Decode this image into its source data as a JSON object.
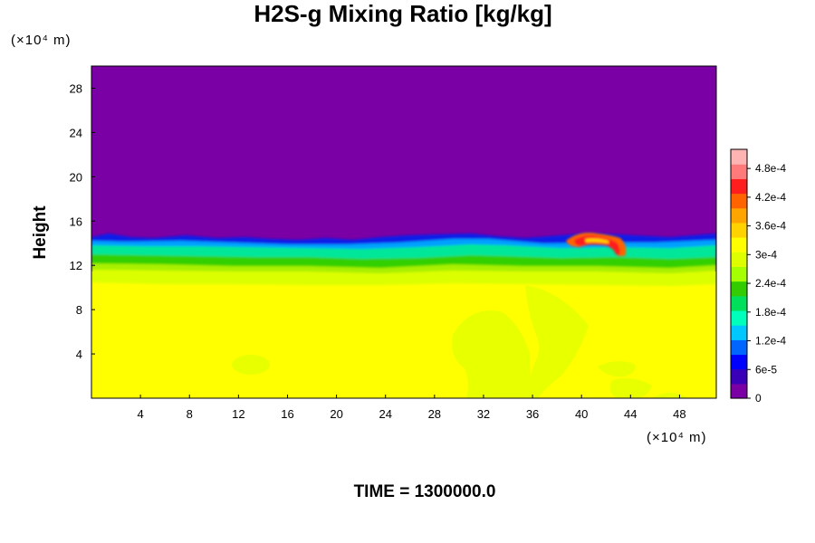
{
  "chart_data": {
    "type": "heatmap",
    "title": "H2S-g Mixing Ratio [kg/kg]",
    "ylabel": "Height",
    "x_unit": "(×10⁴ m)",
    "y_unit": "(×10⁴ m)",
    "footer": "TIME = 1300000.0",
    "xlim": [
      0,
      51
    ],
    "ylim": [
      0,
      30
    ],
    "xticks": [
      "4",
      "8",
      "12",
      "16",
      "20",
      "24",
      "28",
      "32",
      "36",
      "40",
      "44",
      "48"
    ],
    "xtick_values": [
      4,
      8,
      12,
      16,
      20,
      24,
      28,
      32,
      36,
      40,
      44,
      48
    ],
    "yticks": [
      "4",
      "8",
      "12",
      "16",
      "20",
      "24",
      "28"
    ],
    "ytick_values": [
      4,
      8,
      12,
      16,
      20,
      24,
      28
    ],
    "colorbar": {
      "labels": [
        "0",
        "6e-5",
        "1.2e-4",
        "1.8e-4",
        "2.4e-4",
        "3e-4",
        "3.6e-4",
        "4.2e-4",
        "4.8e-4"
      ],
      "values": [
        0,
        6e-05,
        0.00012,
        0.00018,
        0.00024,
        0.0003,
        0.00036,
        0.00042,
        0.00048
      ],
      "max": 0.00052,
      "colors": [
        "#7a00a5",
        "#3a00b8",
        "#0000ff",
        "#0066ff",
        "#00c8ff",
        "#00ffbb",
        "#00e05a",
        "#33cc00",
        "#a5ff00",
        "#ddff00",
        "#ffff00",
        "#ffd200",
        "#ffa500",
        "#ff6400",
        "#ff1e1e",
        "#ff7a7a",
        "#ffb4b4"
      ]
    },
    "field": {
      "upper_layer_value": 0,
      "lower_layer_value": 0.00036,
      "transition_height": [
        11,
        15
      ],
      "hotspot": {
        "x": [
          40,
          44
        ],
        "y": [
          13,
          14.5
        ],
        "peak_value": 0.00045
      }
    }
  }
}
